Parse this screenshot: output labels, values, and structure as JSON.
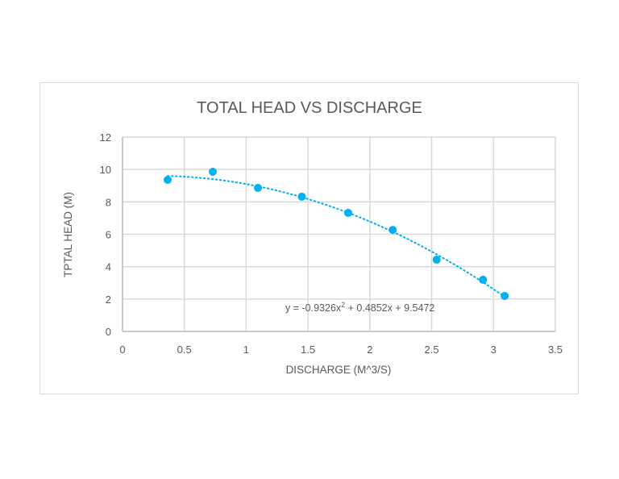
{
  "chart_data": {
    "type": "scatter",
    "title": "TOTAL HEAD VS DISCHARGE",
    "xlabel": "DISCHARGE (M^3/S)",
    "ylabel": "TPTAL HEAD  (M)",
    "xlim": [
      0,
      3.5
    ],
    "ylim": [
      0,
      12
    ],
    "x_ticks": [
      0,
      0.5,
      1,
      1.5,
      2,
      2.5,
      3,
      3.5
    ],
    "y_ticks": [
      0,
      2,
      4,
      6,
      8,
      10,
      12
    ],
    "grid": true,
    "legend": "none",
    "series": [
      {
        "name": "Total Head",
        "color": "#00b0f0",
        "x": [
          0.365,
          0.73,
          1.095,
          1.45,
          1.825,
          2.185,
          2.54,
          2.915,
          3.09
        ],
        "y": [
          9.36,
          9.86,
          8.86,
          8.32,
          7.32,
          6.27,
          4.43,
          3.19,
          2.19
        ]
      }
    ],
    "trendline": {
      "type": "polynomial",
      "order": 2,
      "color": "#00b0f0",
      "style": "dotted",
      "coefficients": {
        "a": -0.9326,
        "b": 0.4852,
        "c": 9.5472
      },
      "x_range": [
        0.365,
        3.09
      ],
      "equation_label": "y = -0.9326x² + 0.4852x + 9.5472"
    }
  },
  "labels": {
    "title": "TOTAL HEAD VS DISCHARGE",
    "xlabel": "DISCHARGE (M^3/S)",
    "ylabel": "TPTAL HEAD  (M)",
    "equation_prefix": "y = -0.9326x",
    "equation_sup": "2",
    "equation_suffix": " + 0.4852x + 9.5472"
  }
}
